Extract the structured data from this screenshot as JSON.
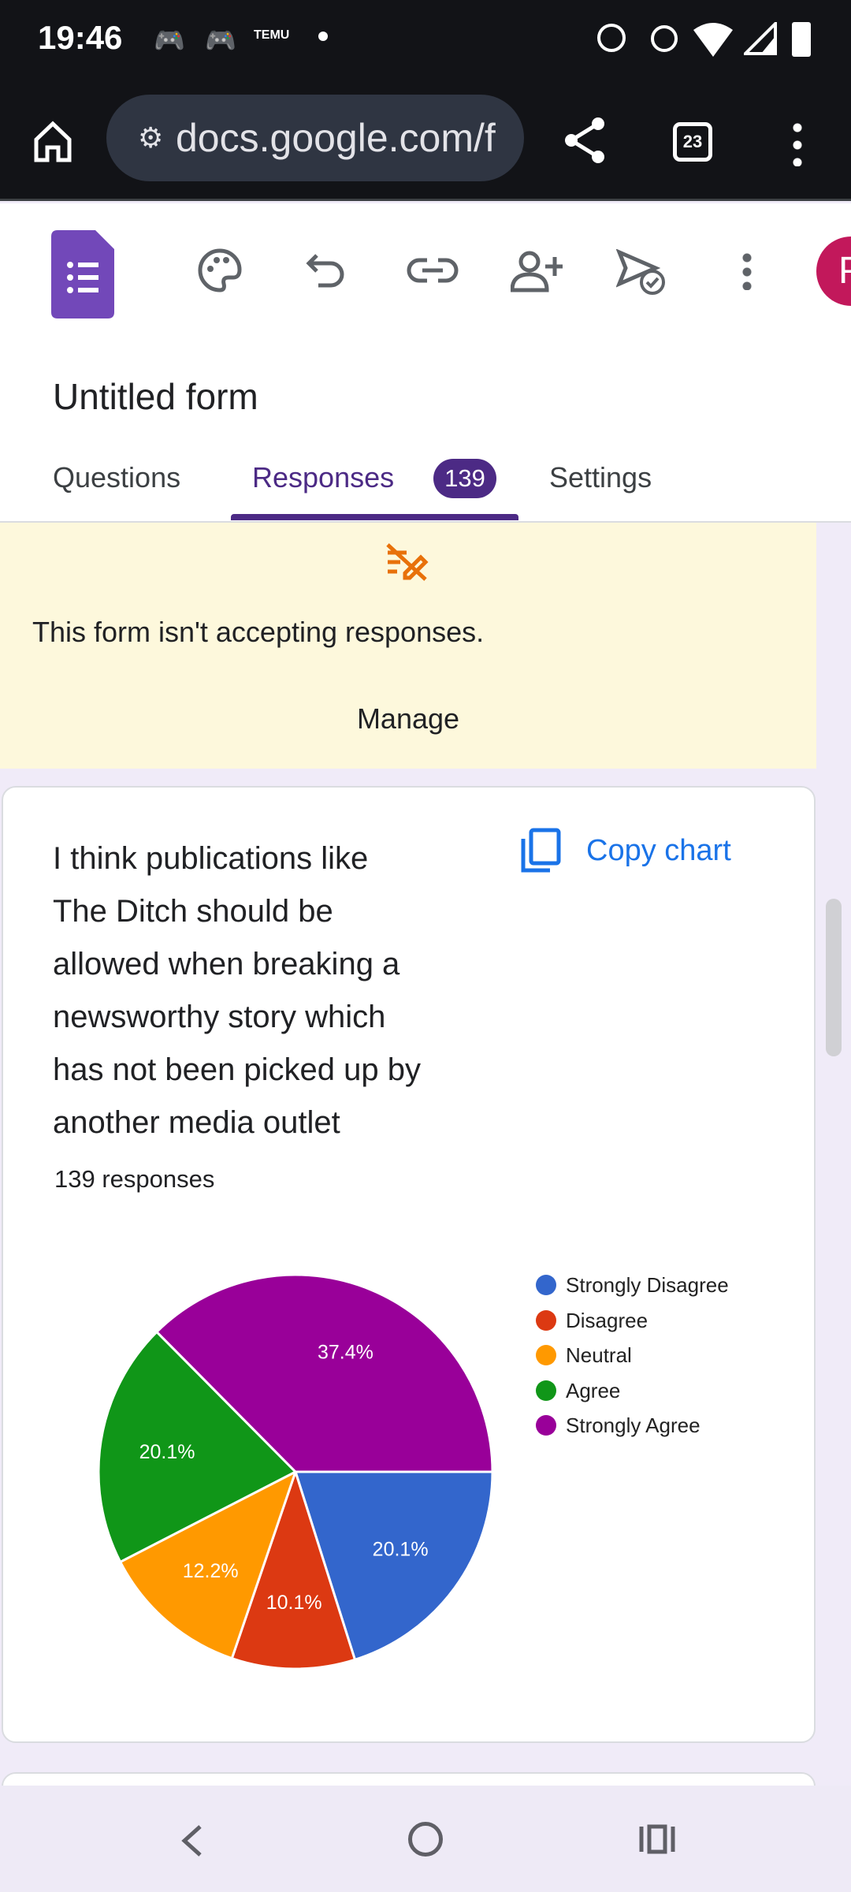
{
  "status_bar": {
    "time": "19:46",
    "notification_icons": [
      "discord-icon",
      "discord-icon",
      "temu-icon",
      "dot-icon"
    ],
    "system_icons": [
      "alarm-icon",
      "dnd-icon",
      "wifi-icon",
      "signal-icon",
      "battery-icon"
    ]
  },
  "browser": {
    "url": "docs.google.com/f",
    "tab_count": "23"
  },
  "app": {
    "title": "Untitled form",
    "avatar_letter": "P",
    "tabs": [
      {
        "label": "Questions"
      },
      {
        "label": "Responses",
        "badge": "139"
      },
      {
        "label": "Settings"
      }
    ]
  },
  "banner": {
    "message": "This form isn't accepting responses.",
    "action": "Manage"
  },
  "question": {
    "lines": [
      "I think publications like",
      "The Ditch should be",
      "allowed when breaking a",
      "newsworthy story which",
      "has not been picked up by",
      "another media outlet"
    ],
    "copy_label": "Copy chart",
    "responses": "139 responses"
  },
  "colors": {
    "accent": "#4c2a85",
    "link": "#1a73e8",
    "banner": "#fdf8dc"
  },
  "chart_data": {
    "type": "pie",
    "legend_position": "right",
    "start": "3 o'clock, clockwise",
    "categories": [
      "Strongly Disagree",
      "Disagree",
      "Neutral",
      "Agree",
      "Strongly Agree"
    ],
    "values": [
      20.1,
      10.1,
      12.2,
      20.1,
      37.4
    ],
    "labels": [
      "20.1%",
      "10.1%",
      "12.2%",
      "20.1%",
      "37.4%"
    ],
    "colors": [
      "#3366cc",
      "#dc3912",
      "#ff9900",
      "#109618",
      "#990099"
    ]
  }
}
